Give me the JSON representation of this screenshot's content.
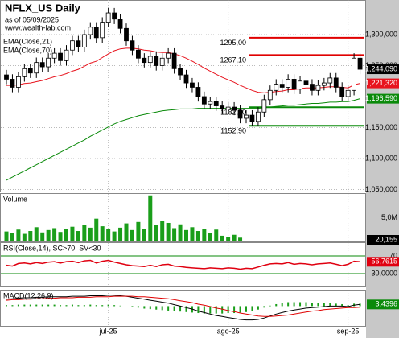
{
  "chart_data": [
    {
      "type": "candlestick",
      "title": "NFLX_US Daily",
      "subtitle": "as of 05/09/2025",
      "source": "www.wealth-lab.com",
      "categories": [
        null,
        null,
        null,
        null,
        null,
        null,
        null,
        null,
        null,
        null,
        null,
        null,
        null,
        null,
        null,
        null,
        null,
        "jul-25",
        null,
        null,
        null,
        null,
        null,
        null,
        null,
        null,
        null,
        null,
        null,
        null,
        null,
        null,
        null,
        null,
        null,
        null,
        null,
        "ago-25",
        null,
        null,
        null,
        null,
        null,
        null,
        null,
        null,
        null,
        null,
        null,
        null,
        null,
        null,
        null,
        null,
        null,
        null,
        null,
        "sep-25",
        null,
        null
      ],
      "open": [
        1235000,
        1228000,
        1215000,
        1232000,
        1245000,
        1238000,
        1255000,
        1248000,
        1262000,
        1270000,
        1258000,
        1275000,
        1290000,
        1280000,
        1300000,
        1312000,
        1295000,
        1320000,
        1335000,
        1325000,
        1310000,
        1290000,
        1275000,
        1262000,
        1255000,
        1265000,
        1250000,
        1262000,
        1270000,
        1245000,
        1235000,
        1222000,
        1215000,
        1200000,
        1188000,
        1192000,
        1185000,
        1180000,
        1183000,
        1178000,
        1165000,
        1170000,
        1160000,
        1175000,
        1195000,
        1210000,
        1220000,
        1215000,
        1228000,
        1212000,
        1225000,
        1220000,
        1210000,
        1218000,
        1222000,
        1230000,
        1215000,
        1200000,
        1210000,
        1262000
      ],
      "high": [
        1243000,
        1236000,
        1240000,
        1253000,
        1253000,
        1263000,
        1263000,
        1270000,
        1278000,
        1278000,
        1283000,
        1298000,
        1298000,
        1308000,
        1320000,
        1320000,
        1328000,
        1343000,
        1343000,
        1333000,
        1318000,
        1298000,
        1283000,
        1270000,
        1273000,
        1273000,
        1270000,
        1278000,
        1278000,
        1253000,
        1243000,
        1230000,
        1223000,
        1208000,
        1200000,
        1200000,
        1193000,
        1191000,
        1191000,
        1186000,
        1178000,
        1178000,
        1183000,
        1203000,
        1218000,
        1228000,
        1228000,
        1236000,
        1236000,
        1233000,
        1233000,
        1228000,
        1226000,
        1230000,
        1238000,
        1238000,
        1223000,
        1218000,
        1270000,
        1270000
      ],
      "low": [
        1220000,
        1207000,
        1207000,
        1224000,
        1230000,
        1230000,
        1240000,
        1240000,
        1254000,
        1250000,
        1250000,
        1267000,
        1272000,
        1272000,
        1292000,
        1287000,
        1287000,
        1312000,
        1317000,
        1302000,
        1282000,
        1267000,
        1254000,
        1247000,
        1247000,
        1242000,
        1242000,
        1254000,
        1237000,
        1227000,
        1214000,
        1207000,
        1192000,
        1180000,
        1180000,
        1177000,
        1172000,
        1172000,
        1170000,
        1157000,
        1157000,
        1153000,
        1152000,
        1167000,
        1187000,
        1202000,
        1207000,
        1207000,
        1204000,
        1204000,
        1212000,
        1202000,
        1202000,
        1210000,
        1214000,
        1207000,
        1192000,
        1192000,
        1202000,
        1236000
      ],
      "close": [
        1228000,
        1215000,
        1232000,
        1245000,
        1238000,
        1255000,
        1248000,
        1262000,
        1270000,
        1258000,
        1275000,
        1290000,
        1280000,
        1300000,
        1312000,
        1295000,
        1320000,
        1335000,
        1325000,
        1310000,
        1290000,
        1275000,
        1262000,
        1255000,
        1265000,
        1250000,
        1262000,
        1270000,
        1245000,
        1235000,
        1222000,
        1215000,
        1200000,
        1188000,
        1192000,
        1185000,
        1180000,
        1183000,
        1178000,
        1165000,
        1170000,
        1160000,
        1175000,
        1195000,
        1210000,
        1220000,
        1215000,
        1228000,
        1212000,
        1225000,
        1220000,
        1210000,
        1218000,
        1222000,
        1230000,
        1215000,
        1200000,
        1210000,
        1262000,
        1244090
      ],
      "close_label": "1,244,090",
      "series": [
        {
          "name": "EMA(Close,21)",
          "color": "#e8141e",
          "label": "1,221,320",
          "values": [
            1218000,
            1218000,
            1219000,
            1221000,
            1222000,
            1224000,
            1226000,
            1229000,
            1232000,
            1234000,
            1237000,
            1241000,
            1244000,
            1249000,
            1254000,
            1257000,
            1263000,
            1269000,
            1274000,
            1277000,
            1278000,
            1278000,
            1277000,
            1275000,
            1274000,
            1272000,
            1271000,
            1271000,
            1269000,
            1266000,
            1262000,
            1257000,
            1252000,
            1246000,
            1241000,
            1236000,
            1231000,
            1227000,
            1223000,
            1218000,
            1214000,
            1210000,
            1207000,
            1206000,
            1207000,
            1208000,
            1209000,
            1211000,
            1211000,
            1213000,
            1214000,
            1214000,
            1214000,
            1215000,
            1216000,
            1216000,
            1215000,
            1214000,
            1219000,
            1221320
          ]
        },
        {
          "name": "EMA(Close,70)",
          "color": "#0a8a0a",
          "label": "1,196,590",
          "values": [
            1065000,
            1070000,
            1075000,
            1080000,
            1085000,
            1090000,
            1095000,
            1100000,
            1105000,
            1110000,
            1115000,
            1120000,
            1125000,
            1130000,
            1136000,
            1141000,
            1146000,
            1151000,
            1156000,
            1160000,
            1163000,
            1166000,
            1169000,
            1171000,
            1173000,
            1175000,
            1177000,
            1178000,
            1179000,
            1180000,
            1180000,
            1180000,
            1181000,
            1181000,
            1181000,
            1181000,
            1181000,
            1181000,
            1181000,
            1181000,
            1181000,
            1181000,
            1181000,
            1182000,
            1183000,
            1184000,
            1185000,
            1186000,
            1186000,
            1187000,
            1188000,
            1189000,
            1189000,
            1190000,
            1191000,
            1191000,
            1192000,
            1192000,
            1194000,
            1196590
          ]
        }
      ],
      "levels": [
        {
          "value": 1295000,
          "label": "1295,00",
          "color": "#e00000"
        },
        {
          "value": 1267100,
          "label": "1267,10",
          "color": "#e00000"
        },
        {
          "value": 1182800,
          "label": "1182,80",
          "color": "#0a8a0a"
        },
        {
          "value": 1152900,
          "label": "1152,90",
          "color": "#0a8a0a"
        }
      ],
      "ylim": [
        1046750,
        1355850
      ],
      "yticks": [
        {
          "value": 1050000,
          "label": "1,050,000"
        },
        {
          "value": 1100000,
          "label": "1,100,000"
        },
        {
          "value": 1150000,
          "label": "1,150,000"
        },
        {
          "value": 1250000,
          "label": "1,250,000"
        },
        {
          "value": 1300000,
          "label": "1,300,000"
        }
      ],
      "grid": true
    },
    {
      "type": "bar",
      "title": "Volume",
      "color": "#1a9e1a",
      "label": "20,155",
      "values": [
        2100000,
        1800000,
        2500000,
        1600000,
        2200000,
        3000000,
        1900000,
        2400000,
        2800000,
        2000000,
        2600000,
        3100000,
        2200000,
        3400000,
        2900000,
        4800000,
        3200000,
        2700000,
        2100000,
        2900000,
        3800000,
        2400000,
        4100000,
        2600000,
        9700000,
        3500000,
        4300000,
        3900000,
        2800000,
        3600000,
        2400000,
        3000000,
        2200000,
        2600000,
        1800000,
        2500000,
        1200000,
        900000,
        1400000,
        800000,
        null,
        null,
        null,
        null,
        null,
        null,
        null,
        null,
        null,
        null,
        null,
        null,
        null,
        null,
        null,
        null,
        null,
        null,
        null,
        null
      ],
      "ylim": [
        0,
        10000000
      ],
      "yticks": [
        {
          "value": 5000000,
          "label": "5,0M"
        }
      ]
    },
    {
      "type": "line",
      "title": "RSI(Close,14), SC>70, SV<30",
      "color": "#e00010",
      "values": [
        49,
        47,
        53,
        54,
        52,
        55,
        53,
        56,
        57,
        54,
        57,
        58,
        55,
        59,
        60,
        54,
        58,
        60,
        56,
        53,
        50,
        48,
        47,
        46,
        49,
        46,
        50,
        51,
        47,
        46,
        44,
        43,
        42,
        41,
        43,
        42,
        41,
        43,
        42,
        40,
        42,
        41,
        45,
        49,
        52,
        53,
        52,
        55,
        51,
        53,
        52,
        50,
        52,
        53,
        54,
        51,
        48,
        51,
        58,
        56.7615
      ],
      "label": "56,7615",
      "ylim": [
        0,
        100
      ],
      "yticks": [
        {
          "value": 30,
          "label": "30,0000"
        },
        70
      ]
    },
    {
      "type": "macd",
      "title": "MACD(12,26,9)",
      "label": "3,4396",
      "series": [
        {
          "color": "#000000",
          "values": [
            14,
            15,
            16,
            17,
            17,
            18,
            18,
            19,
            19,
            19,
            19,
            20,
            20,
            20,
            21,
            21,
            21,
            22,
            22,
            21,
            20,
            18,
            16,
            14,
            12,
            10,
            8,
            6,
            3,
            0,
            -3,
            -6,
            -10,
            -13,
            -16,
            -19,
            -21,
            -23,
            -25,
            -27,
            -28,
            -28,
            -27,
            -24,
            -20,
            -16,
            -13,
            -10,
            -8,
            -6,
            -4,
            -3,
            -2,
            -1,
            0,
            0,
            0,
            -1,
            2,
            3.4396
          ]
        },
        {
          "color": "#e00000",
          "values": [
            12,
            13,
            13,
            14,
            14,
            15,
            15,
            16,
            16,
            17,
            17,
            17,
            18,
            18,
            18,
            19,
            19,
            19,
            20,
            20,
            20,
            20,
            19,
            19,
            18,
            17,
            16,
            15,
            13,
            11,
            9,
            7,
            4,
            2,
            -1,
            -4,
            -6,
            -9,
            -11,
            -14,
            -16,
            -18,
            -20,
            -21,
            -21,
            -20,
            -19,
            -18,
            -16,
            -14,
            -12,
            -10,
            -9,
            -7,
            -6,
            -5,
            -4,
            -3,
            -3,
            -2
          ]
        }
      ],
      "histogram": {
        "color": "#1a9e1a",
        "values": [
          2,
          2,
          3,
          3,
          3,
          3,
          3,
          3,
          3,
          2,
          2,
          3,
          2,
          2,
          3,
          2,
          2,
          3,
          2,
          1,
          0,
          -2,
          -3,
          -5,
          -6,
          -7,
          -8,
          -9,
          -10,
          -11,
          -12,
          -13,
          -14,
          -15,
          -15,
          -15,
          -15,
          -14,
          -14,
          -13,
          -12,
          -10,
          -7,
          -3,
          1,
          4,
          6,
          8,
          8,
          8,
          8,
          7,
          7,
          6,
          6,
          5,
          4,
          2,
          5,
          5
        ]
      },
      "ylim": [
        -40,
        30
      ]
    }
  ]
}
